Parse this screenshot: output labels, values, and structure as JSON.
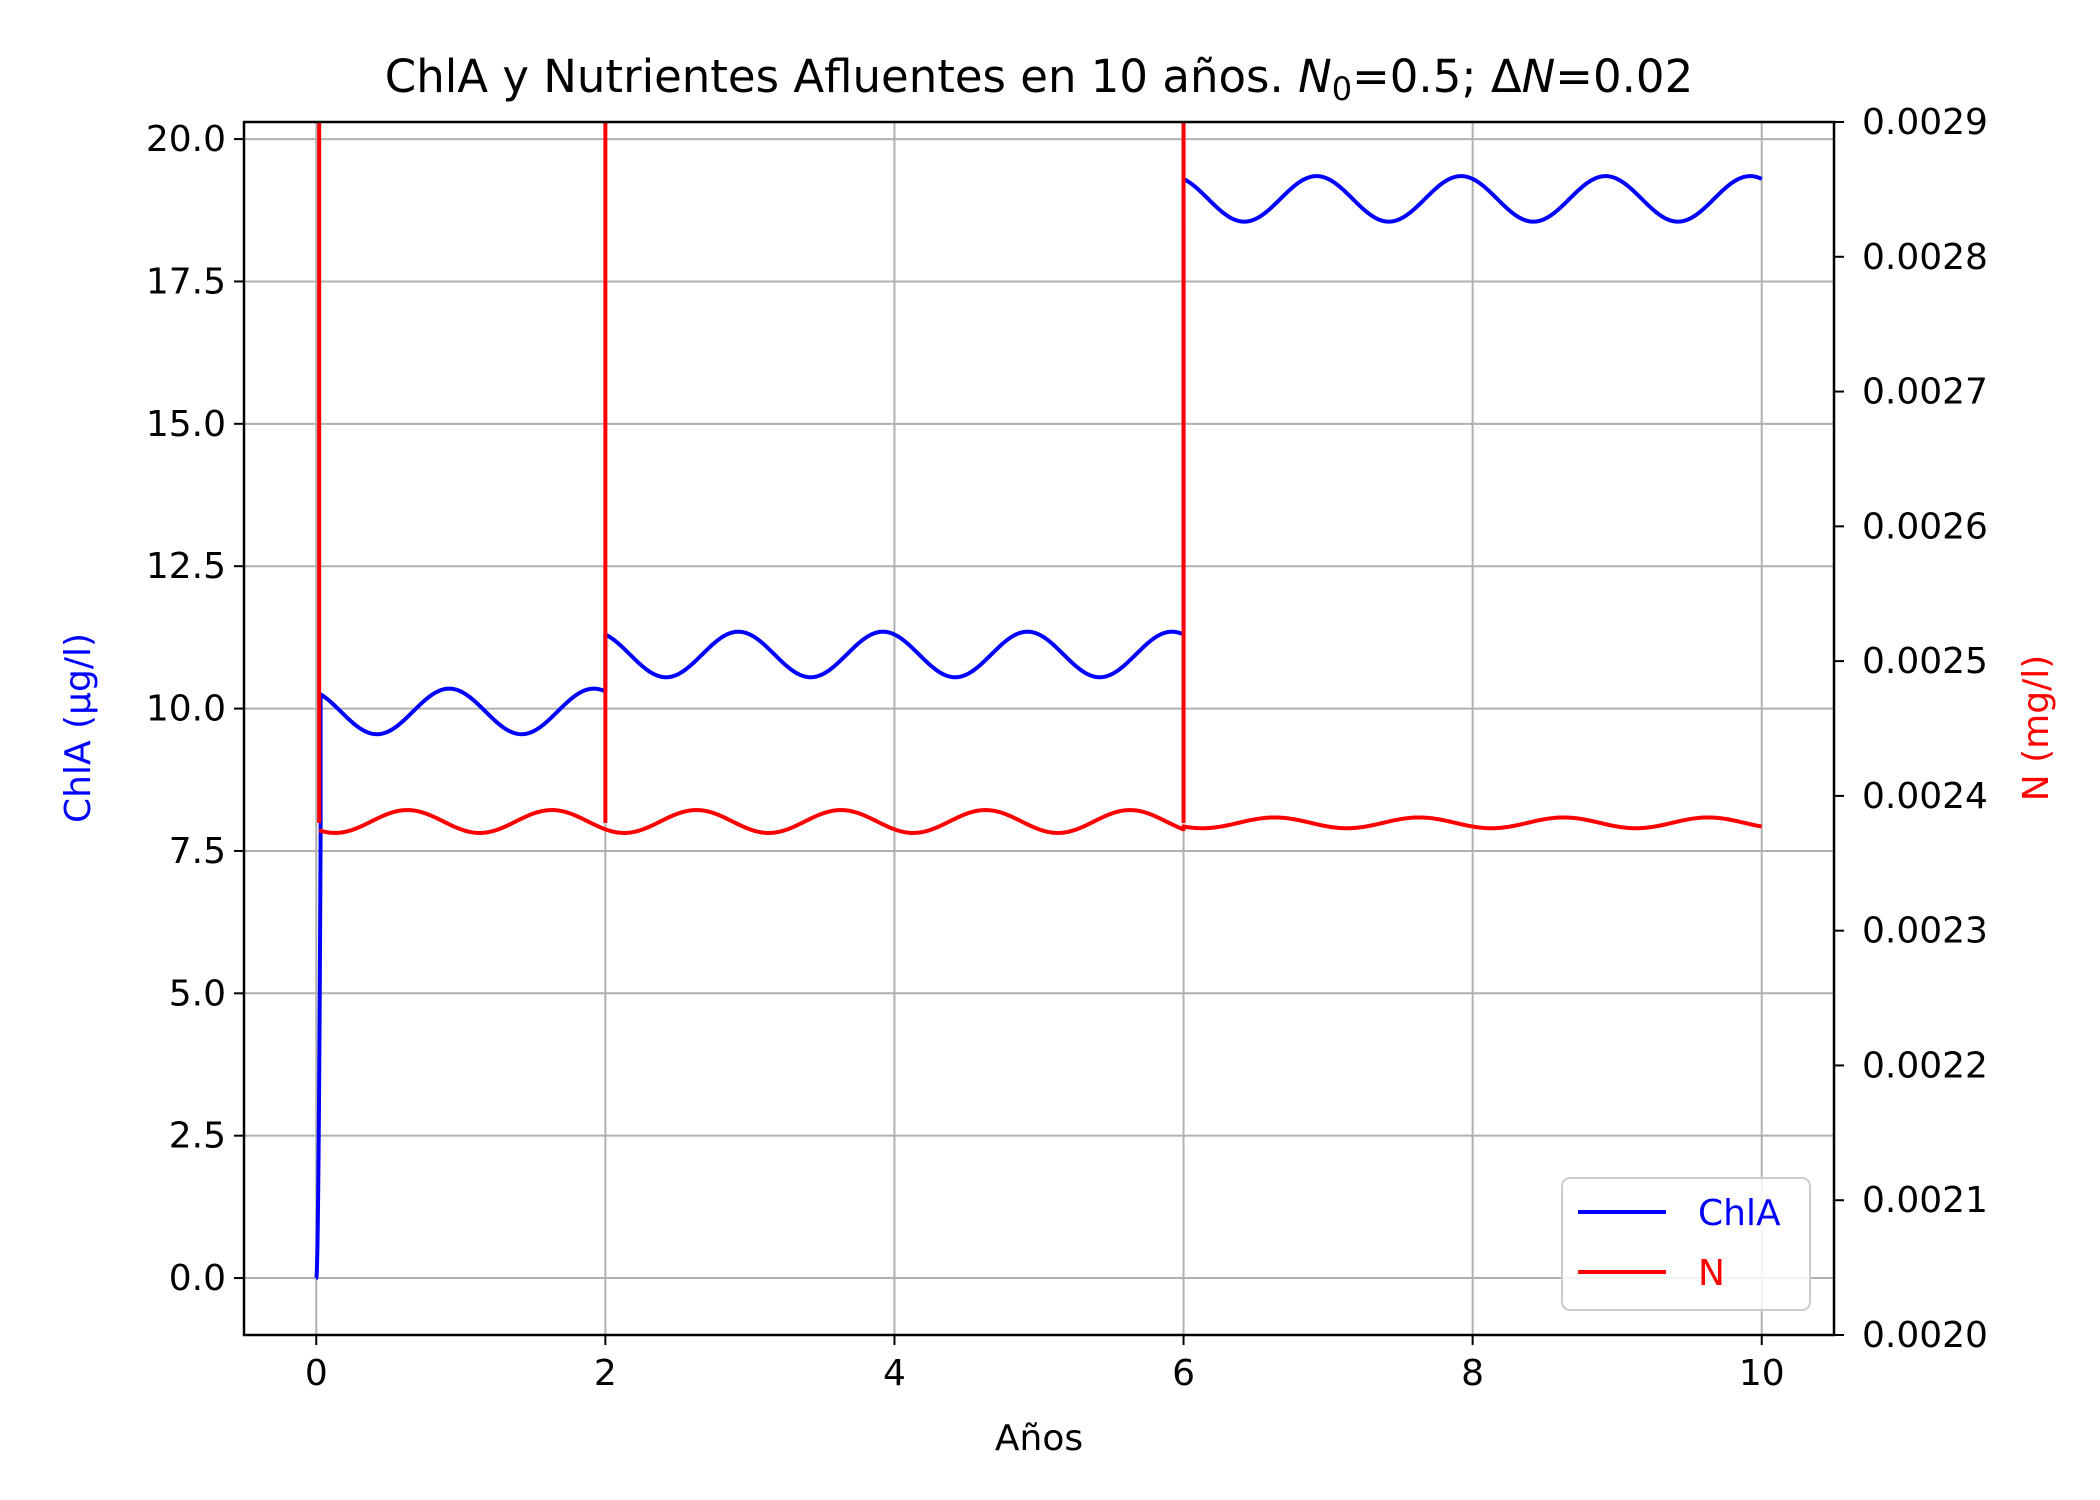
{
  "chart_data": {
    "type": "line",
    "title": "ChlA y Nutrientes Afluentes en 10 años. N₀=0.5; ΔN=0.02",
    "title_parts": {
      "prefix": "ChlA y Nutrientes Afluentes en 10 años. ",
      "n0_var": "N",
      "n0_sub": "0",
      "n0_eq": "=0.5; Δ",
      "dn_var": "N",
      "dn_eq": "=0.02"
    },
    "xlabel": "Años",
    "ylabel_left": "ChlA (μg/l)",
    "ylabel_right": "N (mg/l)",
    "xlim": [
      -0.5,
      10.5
    ],
    "ylim_left": [
      -1.0,
      20.3
    ],
    "ylim_right": [
      0.002,
      0.0029
    ],
    "x_ticks": [
      "0",
      "2",
      "4",
      "6",
      "8",
      "10"
    ],
    "y_left_ticks": [
      "0.0",
      "2.5",
      "5.0",
      "7.5",
      "10.0",
      "12.5",
      "15.0",
      "17.5",
      "20.0"
    ],
    "y_right_ticks": [
      "0.0020",
      "0.0021",
      "0.0022",
      "0.0023",
      "0.0024",
      "0.0025",
      "0.0026",
      "0.0027",
      "0.0028",
      "0.0029"
    ],
    "grid": true,
    "legend": "lower-right",
    "series": [
      {
        "name": "ChlA",
        "axis": "left",
        "color": "#0000ff",
        "segments": [
          {
            "x_start": 0.0,
            "x_end": 0.03,
            "model": "rise",
            "from": 0.0,
            "to": 7.8
          },
          {
            "x_start": 0.03,
            "x_end": 2.0,
            "model": "wave",
            "mean": 9.95,
            "amplitude": 0.4,
            "period": 1.0,
            "peak_at": 0.92,
            "initial": 10.25
          },
          {
            "x_start": 2.0,
            "x_end": 6.0,
            "model": "wave",
            "mean": 10.95,
            "amplitude": 0.4,
            "period": 1.0,
            "peak_at": 2.92,
            "initial": 11.3
          },
          {
            "x_start": 6.0,
            "x_end": 10.0,
            "model": "wave",
            "mean": 18.95,
            "amplitude": 0.4,
            "period": 1.0,
            "peak_at": 6.92,
            "initial": 19.3
          }
        ]
      },
      {
        "name": "N",
        "axis": "right",
        "color": "#ff0000",
        "spikes": [
          {
            "x": 0.02,
            "from": 0.00238,
            "to": 0.0029
          },
          {
            "x": 2.0,
            "from": 0.00238,
            "to": 0.0029
          },
          {
            "x": 6.0,
            "from": 0.00238,
            "to": 0.0029
          }
        ],
        "segments": [
          {
            "x_start": 0.02,
            "x_end": 6.0,
            "model": "wave",
            "mean": 0.002381,
            "amplitude": 8.5e-06,
            "period": 1.0,
            "peak_at": 0.63
          },
          {
            "x_start": 6.0,
            "x_end": 10.0,
            "model": "wave",
            "mean": 0.00238,
            "amplitude": 4e-06,
            "period": 1.0,
            "peak_at": 6.63
          }
        ]
      }
    ]
  },
  "colors": {
    "chla": "#0000ff",
    "n": "#ff0000",
    "grid": "#b0b0b0",
    "axis": "#000000"
  }
}
